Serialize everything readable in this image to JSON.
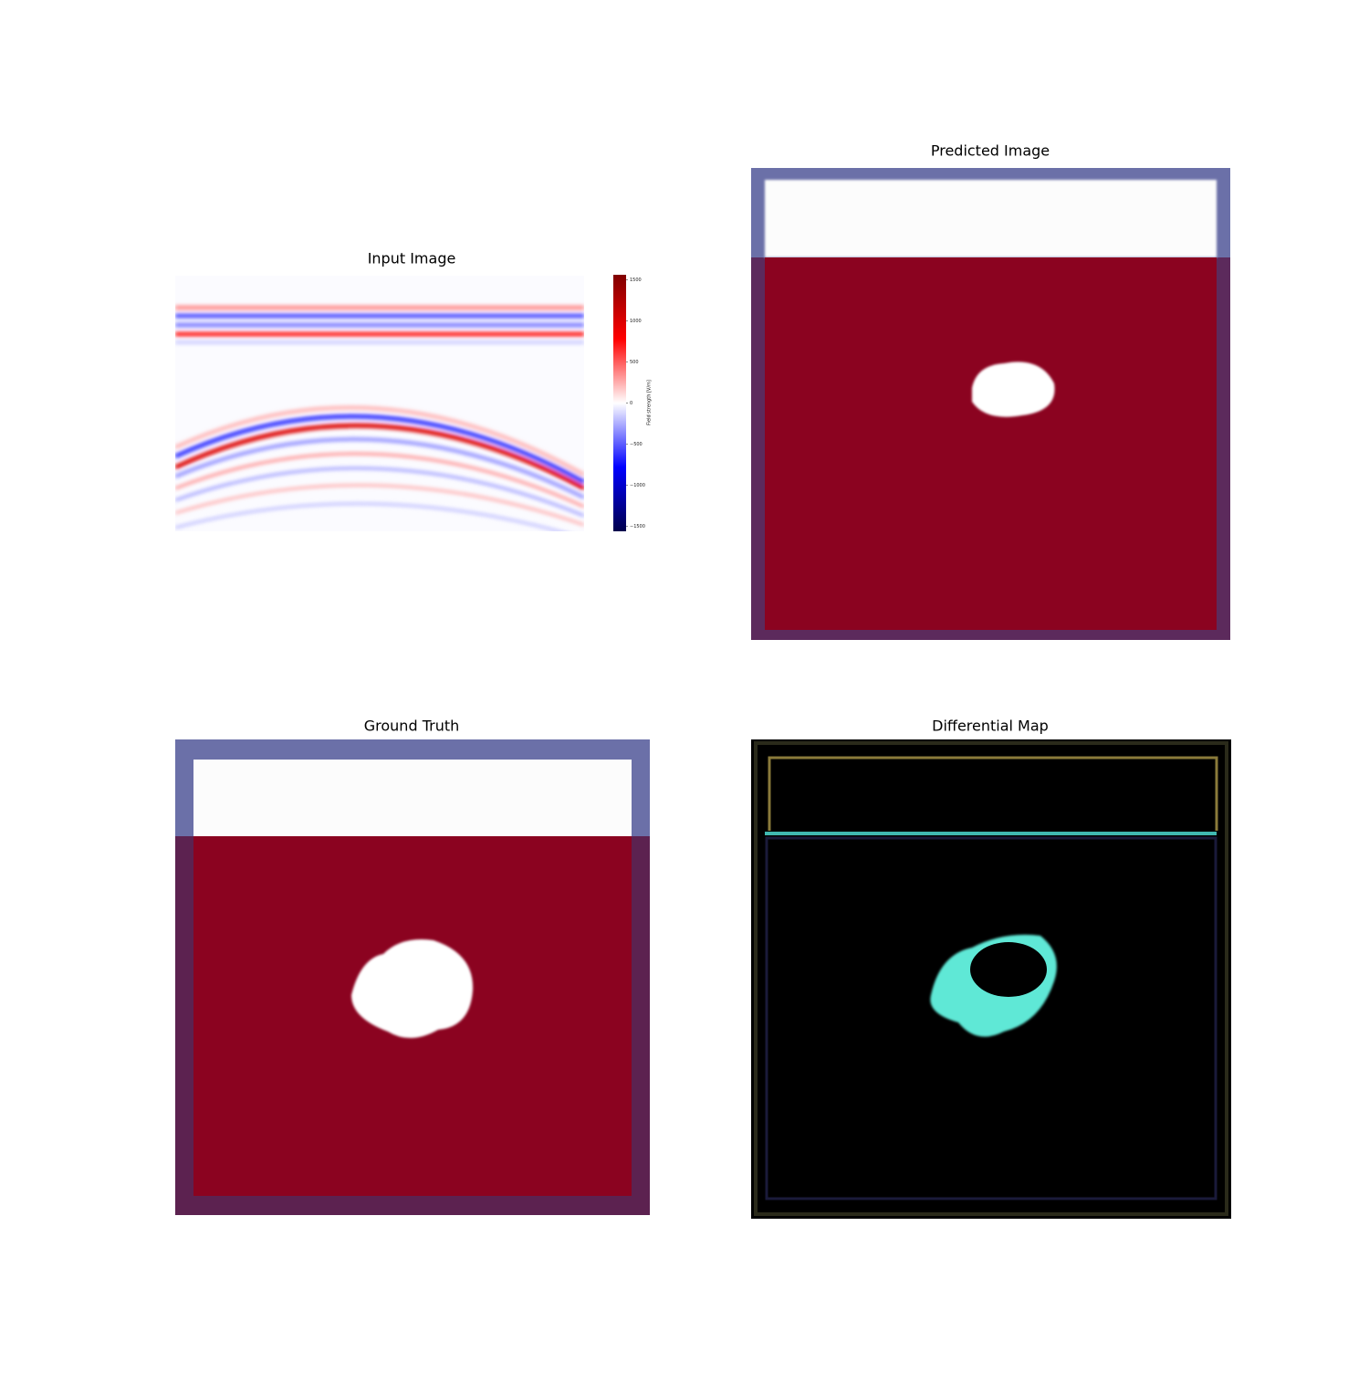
{
  "panels": [
    {
      "title": "Input Image"
    },
    {
      "title": "Predicted Image"
    },
    {
      "title": "Ground Truth"
    },
    {
      "title": "Differential Map"
    }
  ],
  "colorbar": {
    "label": "Field strength [V/m]",
    "lim": [
      -1560,
      1560
    ],
    "ticks": [
      {
        "value": -1500,
        "label": "−1500"
      },
      {
        "value": -1000,
        "label": "−1000"
      },
      {
        "value": -500,
        "label": "−500"
      },
      0,
      500,
      1000,
      1500
    ]
  }
}
